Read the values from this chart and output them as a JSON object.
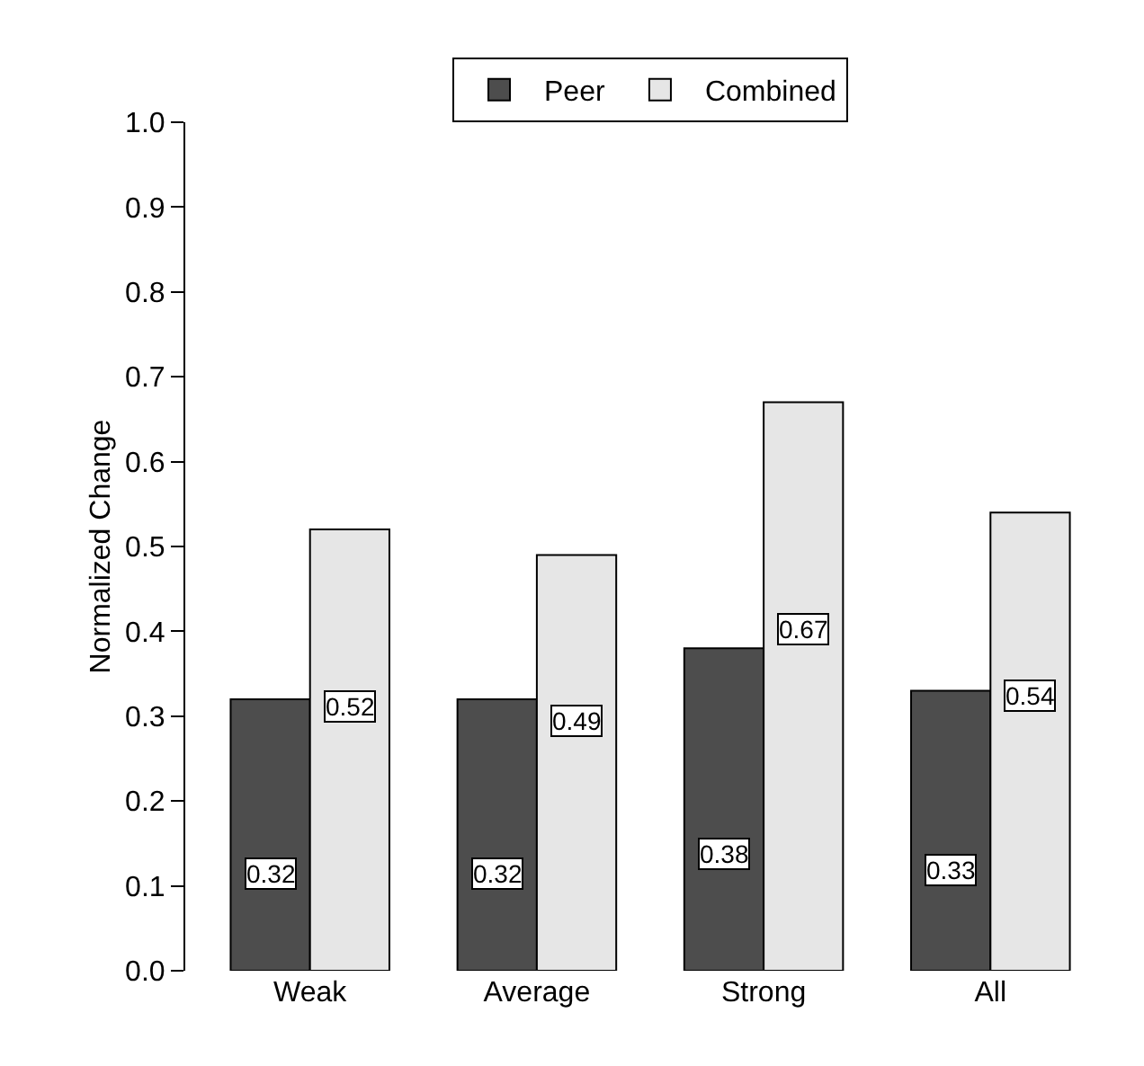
{
  "chart_data": {
    "type": "bar",
    "ylabel": "Normalized Change",
    "categories": [
      "Weak",
      "Average",
      "Strong",
      "All"
    ],
    "series": [
      {
        "name": "Peer",
        "color": "#4d4d4d",
        "values": [
          0.32,
          0.32,
          0.38,
          0.33
        ]
      },
      {
        "name": "Combined",
        "color": "#e6e6e6",
        "values": [
          0.52,
          0.49,
          0.67,
          0.54
        ]
      }
    ],
    "ylim": [
      0,
      1
    ],
    "yticks": [
      {
        "value": 0,
        "label": "0.0"
      },
      0.1,
      0.2,
      0.3,
      0.4,
      0.5,
      0.6,
      0.7,
      0.8,
      0.9,
      {
        "value": 1,
        "label": "1.0"
      }
    ],
    "data_labels": true,
    "grid": false,
    "legend": "top"
  }
}
